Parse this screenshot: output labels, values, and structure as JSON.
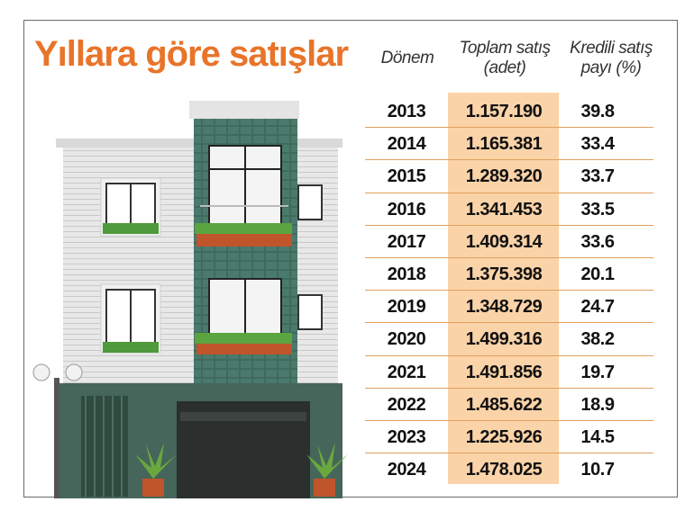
{
  "title": "Yıllara göre satışlar",
  "headers": {
    "period": "Dönem",
    "total_line1": "Toplam satış",
    "total_line2": "(adet)",
    "share_line1": "Kredili satış",
    "share_line2": "payı (%)"
  },
  "rows": [
    {
      "year": "2013",
      "total": "1.157.190",
      "share": "39.8"
    },
    {
      "year": "2014",
      "total": "1.165.381",
      "share": "33.4"
    },
    {
      "year": "2015",
      "total": "1.289.320",
      "share": "33.7"
    },
    {
      "year": "2016",
      "total": "1.341.453",
      "share": "33.5"
    },
    {
      "year": "2017",
      "total": "1.409.314",
      "share": "33.6"
    },
    {
      "year": "2018",
      "total": "1.375.398",
      "share": "20.1"
    },
    {
      "year": "2019",
      "total": "1.348.729",
      "share": "24.7"
    },
    {
      "year": "2020",
      "total": "1.499.316",
      "share": "38.2"
    },
    {
      "year": "2021",
      "total": "1.491.856",
      "share": "19.7"
    },
    {
      "year": "2022",
      "total": "1.485.622",
      "share": "18.9"
    },
    {
      "year": "2023",
      "total": "1.225.926",
      "share": "14.5"
    },
    {
      "year": "2024",
      "total": "1.478.025",
      "share": "10.7"
    }
  ],
  "chart_data": {
    "type": "table",
    "title": "Yıllara göre satışlar",
    "columns": [
      "Dönem",
      "Toplam satış (adet)",
      "Kredili satış payı (%)"
    ],
    "x": [
      2013,
      2014,
      2015,
      2016,
      2017,
      2018,
      2019,
      2020,
      2021,
      2022,
      2023,
      2024
    ],
    "series": [
      {
        "name": "Toplam satış (adet)",
        "values": [
          1157190,
          1165381,
          1289320,
          1341453,
          1409314,
          1375398,
          1348729,
          1499316,
          1491856,
          1485622,
          1225926,
          1478025
        ]
      },
      {
        "name": "Kredili satış payı (%)",
        "values": [
          39.8,
          33.4,
          33.7,
          33.5,
          33.6,
          20.1,
          24.7,
          38.2,
          19.7,
          18.9,
          14.5,
          10.7
        ]
      }
    ]
  },
  "colors": {
    "title": "#e8742a",
    "highlight": "#fbd3a8",
    "divider": "#e0a060",
    "building_green": "#3f6b5f",
    "siding": "#e6e6e6",
    "garage": "#2f3a36"
  }
}
